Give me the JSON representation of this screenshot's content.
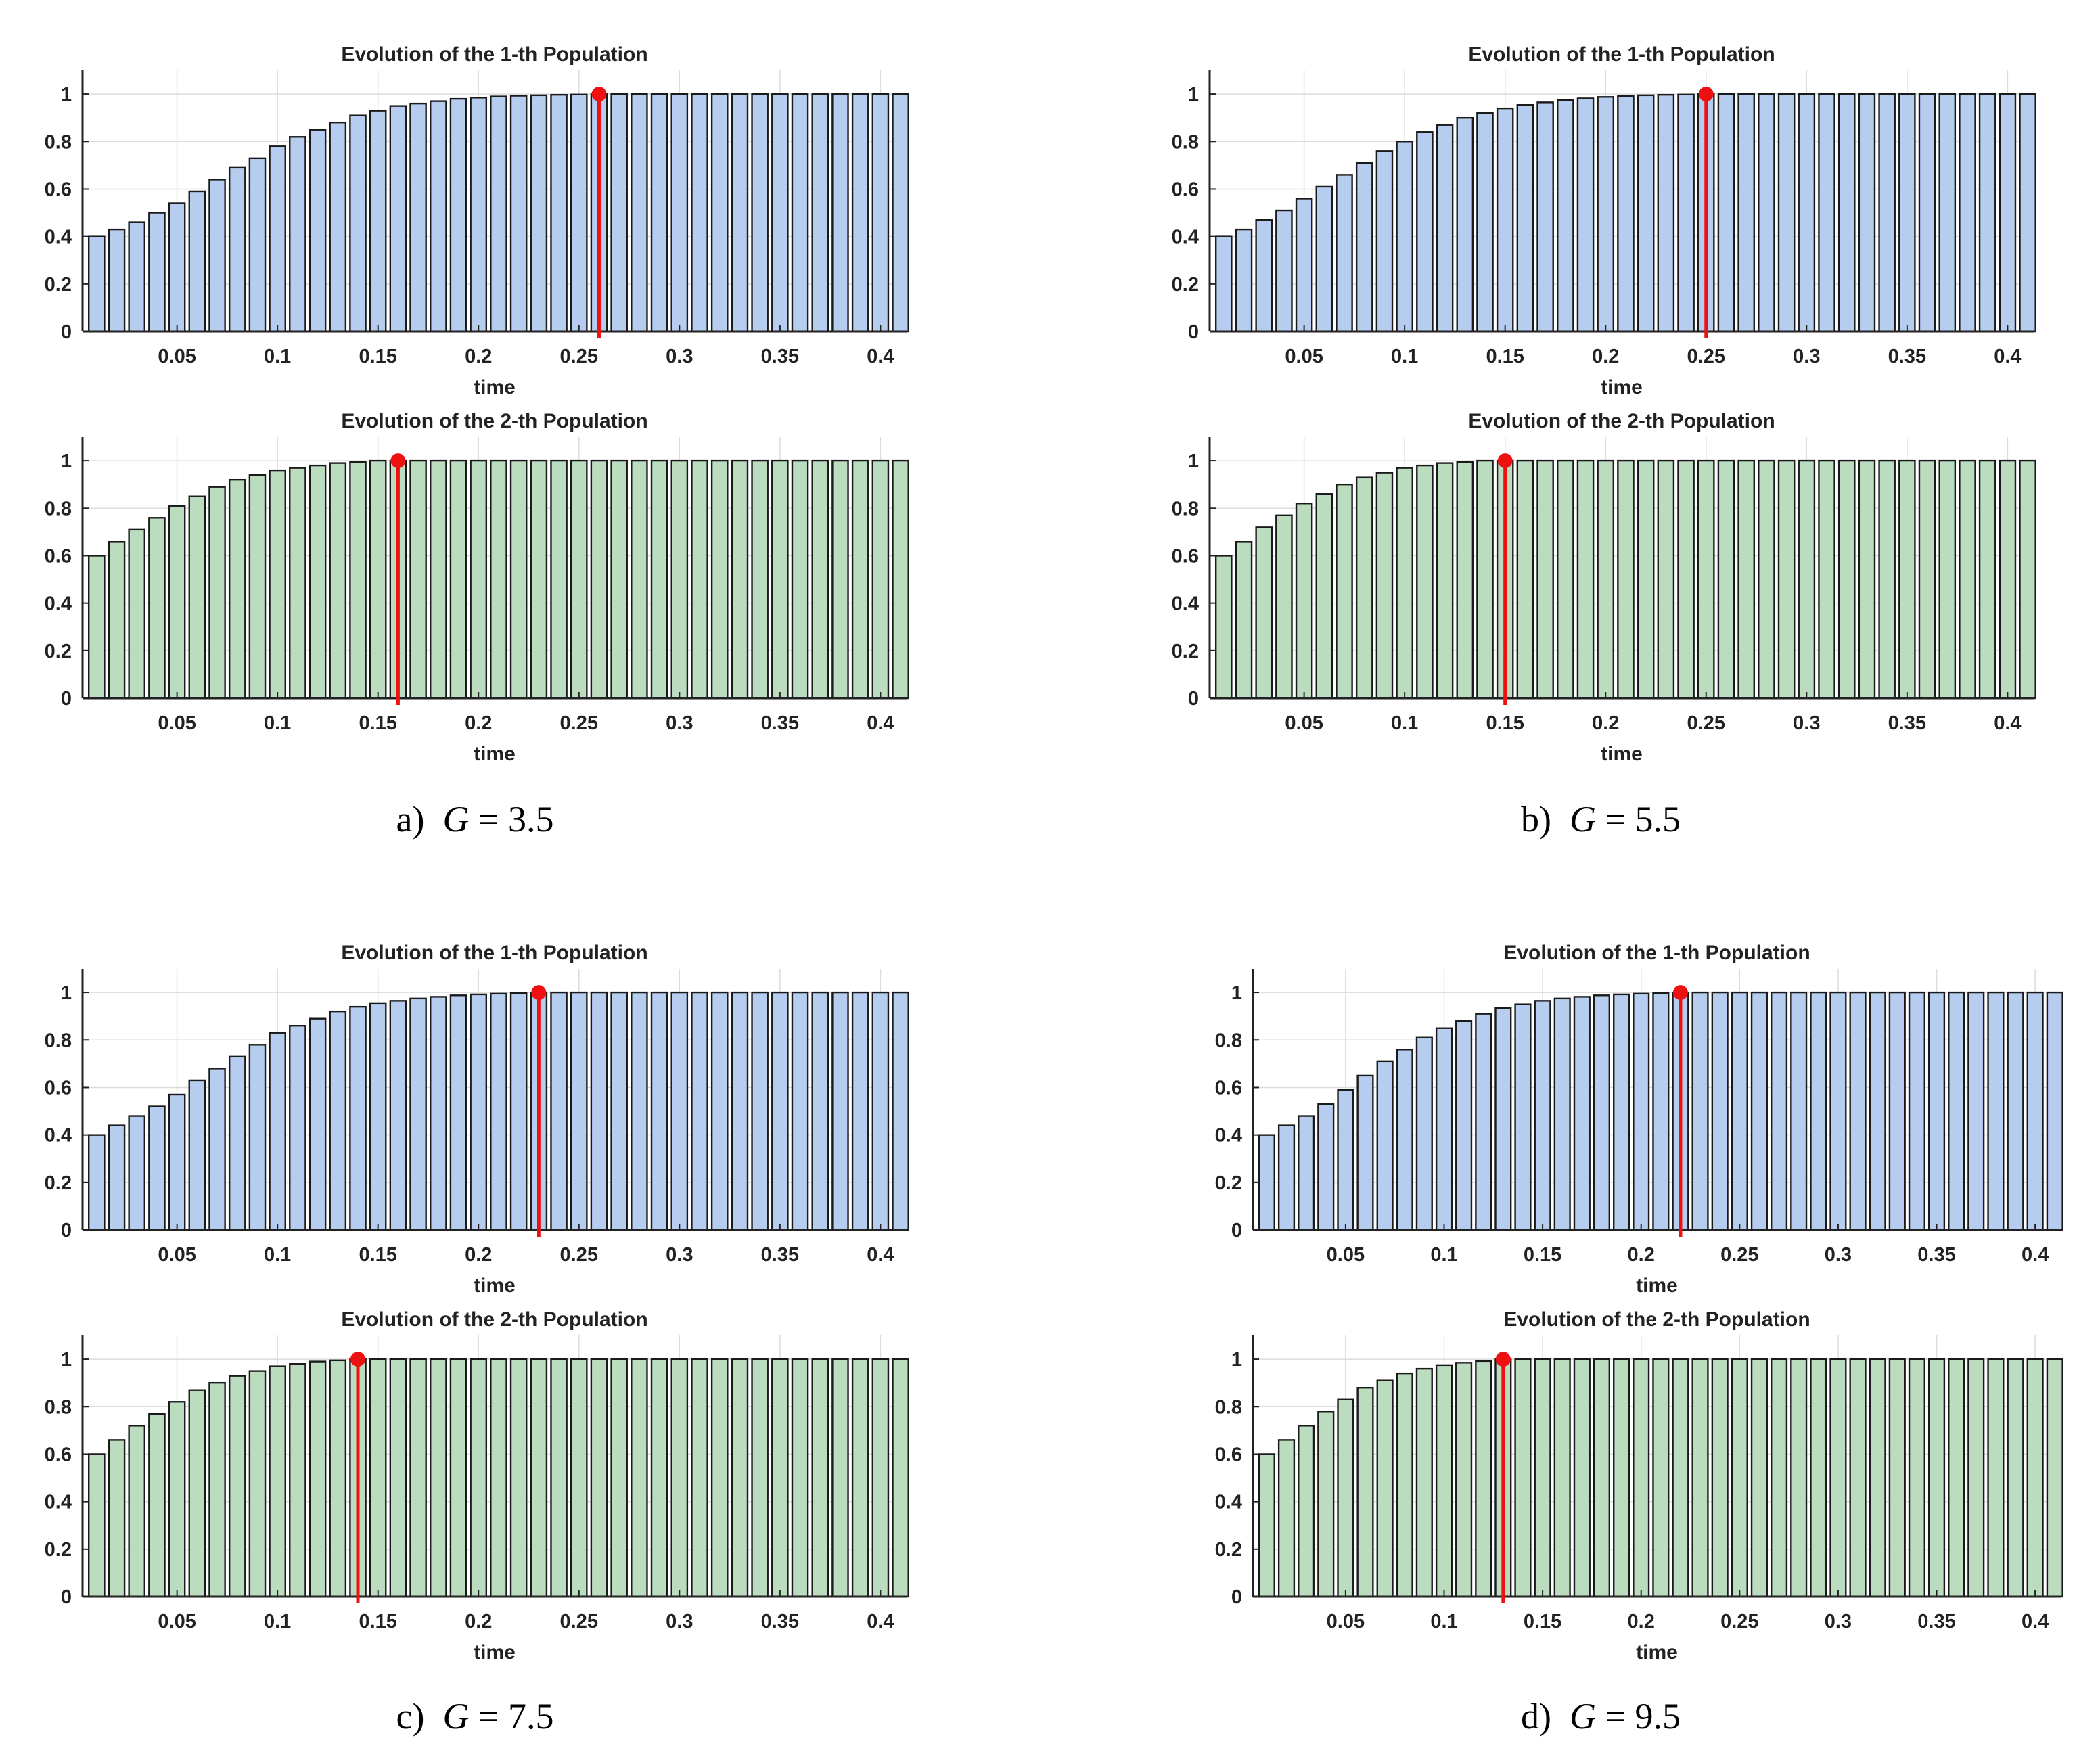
{
  "captions": {
    "a": {
      "prefix": "a)",
      "var": "G",
      "eq": " = 3.5"
    },
    "b": {
      "prefix": "b)",
      "var": "G",
      "eq": " = 5.5"
    },
    "c": {
      "prefix": "c)",
      "var": "G",
      "eq": " = 7.5"
    },
    "d": {
      "prefix": "d)",
      "var": "G",
      "eq": " = 9.5"
    }
  },
  "colors": {
    "pop1": "#b6cdef",
    "pop2": "#bcdcc0",
    "marker": "#ee1111",
    "edge": "#1a1a1a",
    "grid": "#dcdcdc"
  },
  "chart_data": [
    {
      "type": "bar",
      "panel": "a",
      "title": "Evolution of the 1-th Population",
      "xlabel": "time",
      "ylabel": "",
      "xticks": [
        0.05,
        0.1,
        0.15,
        0.2,
        0.25,
        0.3,
        0.35,
        0.4
      ],
      "xtick_labels": [
        "0.05",
        "0.1",
        "0.15",
        "0.2",
        "0.25",
        "0.3",
        "0.35",
        "0.4"
      ],
      "yticks": [
        0,
        0.2,
        0.4,
        0.6,
        0.8,
        1
      ],
      "ytick_labels": [
        "0",
        "0.2",
        "0.4",
        "0.6",
        "0.8",
        "1"
      ],
      "xlim": [
        0.003,
        0.413
      ],
      "ylim": [
        0,
        1.1
      ],
      "bar_start": 0.01,
      "bar_step": 0.01,
      "values": [
        0.4,
        0.43,
        0.46,
        0.5,
        0.54,
        0.59,
        0.64,
        0.69,
        0.73,
        0.78,
        0.82,
        0.85,
        0.88,
        0.91,
        0.93,
        0.95,
        0.96,
        0.97,
        0.98,
        0.985,
        0.99,
        0.993,
        0.995,
        0.997,
        0.998,
        1,
        1,
        1,
        1,
        1,
        1,
        1,
        1,
        1,
        1,
        1,
        1,
        1,
        1,
        1,
        1
      ],
      "marker_x": 0.26,
      "marker_y": 1.0
    },
    {
      "type": "bar",
      "panel": "a",
      "title": "Evolution of the 2-th Population",
      "xlabel": "time",
      "ylabel": "",
      "xticks": [
        0.05,
        0.1,
        0.15,
        0.2,
        0.25,
        0.3,
        0.35,
        0.4
      ],
      "xtick_labels": [
        "0.05",
        "0.1",
        "0.15",
        "0.2",
        "0.25",
        "0.3",
        "0.35",
        "0.4"
      ],
      "yticks": [
        0,
        0.2,
        0.4,
        0.6,
        0.8,
        1
      ],
      "ytick_labels": [
        "0",
        "0.2",
        "0.4",
        "0.6",
        "0.8",
        "1"
      ],
      "xlim": [
        0.003,
        0.413
      ],
      "ylim": [
        0,
        1.1
      ],
      "bar_start": 0.01,
      "bar_step": 0.01,
      "values": [
        0.6,
        0.66,
        0.71,
        0.76,
        0.81,
        0.85,
        0.89,
        0.92,
        0.94,
        0.96,
        0.97,
        0.98,
        0.99,
        0.995,
        1,
        1,
        1,
        1,
        1,
        1,
        1,
        1,
        1,
        1,
        1,
        1,
        1,
        1,
        1,
        1,
        1,
        1,
        1,
        1,
        1,
        1,
        1,
        1,
        1,
        1,
        1
      ],
      "marker_x": 0.16,
      "marker_y": 1.0
    },
    {
      "type": "bar",
      "panel": "b",
      "title": "Evolution of the 1-th Population",
      "xlabel": "time",
      "ylabel": "",
      "xticks": [
        0.05,
        0.1,
        0.15,
        0.2,
        0.25,
        0.3,
        0.35,
        0.4
      ],
      "xtick_labels": [
        "0.05",
        "0.1",
        "0.15",
        "0.2",
        "0.25",
        "0.3",
        "0.35",
        "0.4"
      ],
      "yticks": [
        0,
        0.2,
        0.4,
        0.6,
        0.8,
        1
      ],
      "ytick_labels": [
        "0",
        "0.2",
        "0.4",
        "0.6",
        "0.8",
        "1"
      ],
      "xlim": [
        0.003,
        0.413
      ],
      "ylim": [
        0,
        1.1
      ],
      "bar_start": 0.01,
      "bar_step": 0.01,
      "values": [
        0.4,
        0.43,
        0.47,
        0.51,
        0.56,
        0.61,
        0.66,
        0.71,
        0.76,
        0.8,
        0.84,
        0.87,
        0.9,
        0.92,
        0.94,
        0.955,
        0.965,
        0.975,
        0.982,
        0.988,
        0.992,
        0.995,
        0.997,
        0.998,
        1,
        1,
        1,
        1,
        1,
        1,
        1,
        1,
        1,
        1,
        1,
        1,
        1,
        1,
        1,
        1,
        1
      ],
      "marker_x": 0.25,
      "marker_y": 1.0
    },
    {
      "type": "bar",
      "panel": "b",
      "title": "Evolution of the 2-th Population",
      "xlabel": "time",
      "ylabel": "",
      "xticks": [
        0.05,
        0.1,
        0.15,
        0.2,
        0.25,
        0.3,
        0.35,
        0.4
      ],
      "xtick_labels": [
        "0.05",
        "0.1",
        "0.15",
        "0.2",
        "0.25",
        "0.3",
        "0.35",
        "0.4"
      ],
      "yticks": [
        0,
        0.2,
        0.4,
        0.6,
        0.8,
        1
      ],
      "ytick_labels": [
        "0",
        "0.2",
        "0.4",
        "0.6",
        "0.8",
        "1"
      ],
      "xlim": [
        0.003,
        0.413
      ],
      "ylim": [
        0,
        1.1
      ],
      "bar_start": 0.01,
      "bar_step": 0.01,
      "values": [
        0.6,
        0.66,
        0.72,
        0.77,
        0.82,
        0.86,
        0.9,
        0.93,
        0.95,
        0.97,
        0.98,
        0.99,
        0.995,
        1,
        1,
        1,
        1,
        1,
        1,
        1,
        1,
        1,
        1,
        1,
        1,
        1,
        1,
        1,
        1,
        1,
        1,
        1,
        1,
        1,
        1,
        1,
        1,
        1,
        1,
        1,
        1
      ],
      "marker_x": 0.15,
      "marker_y": 1.0
    },
    {
      "type": "bar",
      "panel": "c",
      "title": "Evolution of the 1-th Population",
      "xlabel": "time",
      "ylabel": "",
      "xticks": [
        0.05,
        0.1,
        0.15,
        0.2,
        0.25,
        0.3,
        0.35,
        0.4
      ],
      "xtick_labels": [
        "0.05",
        "0.1",
        "0.15",
        "0.2",
        "0.25",
        "0.3",
        "0.35",
        "0.4"
      ],
      "yticks": [
        0,
        0.2,
        0.4,
        0.6,
        0.8,
        1
      ],
      "ytick_labels": [
        "0",
        "0.2",
        "0.4",
        "0.6",
        "0.8",
        "1"
      ],
      "xlim": [
        0.003,
        0.413
      ],
      "ylim": [
        0,
        1.1
      ],
      "bar_start": 0.01,
      "bar_step": 0.01,
      "values": [
        0.4,
        0.44,
        0.48,
        0.52,
        0.57,
        0.63,
        0.68,
        0.73,
        0.78,
        0.83,
        0.86,
        0.89,
        0.92,
        0.94,
        0.955,
        0.965,
        0.975,
        0.982,
        0.988,
        0.992,
        0.995,
        0.997,
        0.998,
        1,
        1,
        1,
        1,
        1,
        1,
        1,
        1,
        1,
        1,
        1,
        1,
        1,
        1,
        1,
        1,
        1,
        1
      ],
      "marker_x": 0.23,
      "marker_y": 1.0
    },
    {
      "type": "bar",
      "panel": "c",
      "title": "Evolution of the 2-th Population",
      "xlabel": "time",
      "ylabel": "",
      "xticks": [
        0.05,
        0.1,
        0.15,
        0.2,
        0.25,
        0.3,
        0.35,
        0.4
      ],
      "xtick_labels": [
        "0.05",
        "0.1",
        "0.15",
        "0.2",
        "0.25",
        "0.3",
        "0.35",
        "0.4"
      ],
      "yticks": [
        0,
        0.2,
        0.4,
        0.6,
        0.8,
        1
      ],
      "ytick_labels": [
        "0",
        "0.2",
        "0.4",
        "0.6",
        "0.8",
        "1"
      ],
      "xlim": [
        0.003,
        0.413
      ],
      "ylim": [
        0,
        1.1
      ],
      "bar_start": 0.01,
      "bar_step": 0.01,
      "values": [
        0.6,
        0.66,
        0.72,
        0.77,
        0.82,
        0.87,
        0.9,
        0.93,
        0.95,
        0.97,
        0.98,
        0.99,
        0.995,
        1,
        1,
        1,
        1,
        1,
        1,
        1,
        1,
        1,
        1,
        1,
        1,
        1,
        1,
        1,
        1,
        1,
        1,
        1,
        1,
        1,
        1,
        1,
        1,
        1,
        1,
        1,
        1
      ],
      "marker_x": 0.14,
      "marker_y": 1.0
    },
    {
      "type": "bar",
      "panel": "d",
      "title": "Evolution of the 1-th Population",
      "xlabel": "time",
      "ylabel": "",
      "xticks": [
        0.05,
        0.1,
        0.15,
        0.2,
        0.25,
        0.3,
        0.35,
        0.4
      ],
      "xtick_labels": [
        "0.05",
        "0.1",
        "0.15",
        "0.2",
        "0.25",
        "0.3",
        "0.35",
        "0.4"
      ],
      "yticks": [
        0,
        0.2,
        0.4,
        0.6,
        0.8,
        1
      ],
      "ytick_labels": [
        "0",
        "0.2",
        "0.4",
        "0.6",
        "0.8",
        "1"
      ],
      "xlim": [
        0.003,
        0.413
      ],
      "ylim": [
        0,
        1.1
      ],
      "bar_start": 0.01,
      "bar_step": 0.01,
      "values": [
        0.4,
        0.44,
        0.48,
        0.53,
        0.59,
        0.65,
        0.71,
        0.76,
        0.81,
        0.85,
        0.88,
        0.91,
        0.935,
        0.95,
        0.965,
        0.975,
        0.982,
        0.988,
        0.992,
        0.995,
        0.997,
        0.998,
        1,
        1,
        1,
        1,
        1,
        1,
        1,
        1,
        1,
        1,
        1,
        1,
        1,
        1,
        1,
        1,
        1,
        1,
        1
      ],
      "marker_x": 0.22,
      "marker_y": 1.0
    },
    {
      "type": "bar",
      "panel": "d",
      "title": "Evolution of the 2-th Population",
      "xlabel": "time",
      "ylabel": "",
      "xticks": [
        0.05,
        0.1,
        0.15,
        0.2,
        0.25,
        0.3,
        0.35,
        0.4
      ],
      "xtick_labels": [
        "0.05",
        "0.1",
        "0.15",
        "0.2",
        "0.25",
        "0.3",
        "0.35",
        "0.4"
      ],
      "yticks": [
        0,
        0.2,
        0.4,
        0.6,
        0.8,
        1
      ],
      "ytick_labels": [
        "0",
        "0.2",
        "0.4",
        "0.6",
        "0.8",
        "1"
      ],
      "xlim": [
        0.003,
        0.413
      ],
      "ylim": [
        0,
        1.1
      ],
      "bar_start": 0.01,
      "bar_step": 0.01,
      "values": [
        0.6,
        0.66,
        0.72,
        0.78,
        0.83,
        0.88,
        0.91,
        0.94,
        0.96,
        0.975,
        0.985,
        0.992,
        1,
        1,
        1,
        1,
        1,
        1,
        1,
        1,
        1,
        1,
        1,
        1,
        1,
        1,
        1,
        1,
        1,
        1,
        1,
        1,
        1,
        1,
        1,
        1,
        1,
        1,
        1,
        1,
        1
      ],
      "marker_x": 0.13,
      "marker_y": 1.0
    }
  ]
}
